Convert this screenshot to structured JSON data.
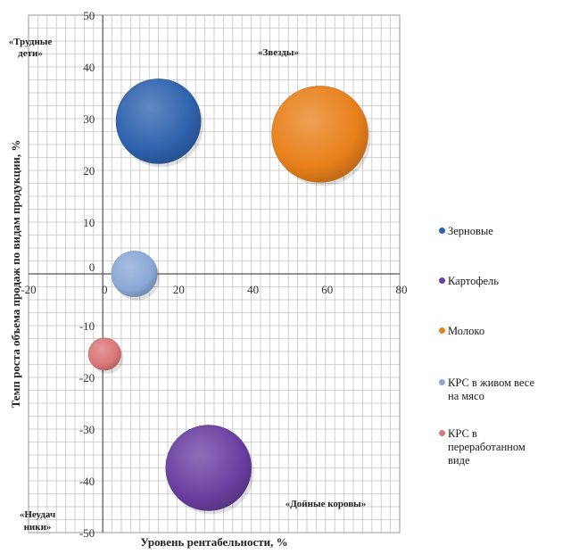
{
  "chart_data": {
    "type": "bubble",
    "xlabel": "Уровень рентабельности, %",
    "ylabel": "Темп роста объема продаж по видам продукции, %",
    "xlim": [
      -20,
      80
    ],
    "ylim": [
      -50,
      50
    ],
    "x_ticks": [
      "-20",
      "0",
      "20",
      "40",
      "60",
      "80"
    ],
    "y_ticks": [
      "-50",
      "-40",
      "-30",
      "-20",
      "-10",
      "0",
      "10",
      "20",
      "30",
      "40",
      "50"
    ],
    "grid": true,
    "legend_position": "right",
    "series": [
      {
        "name": "Зерновые",
        "x": 15,
        "y": 29.5,
        "size": 5.5,
        "color": "#2e62ad"
      },
      {
        "name": "Картофель",
        "x": 28.5,
        "y": -37.5,
        "size": 5.6,
        "color": "#6a3fa0"
      },
      {
        "name": "Молоко",
        "x": 58.5,
        "y": 27,
        "size": 7.1,
        "color": "#e8801b"
      },
      {
        "name": "КРС в живом весе на мясо",
        "x": 8.5,
        "y": 0,
        "size": 1.6,
        "color": "#8aa8d6"
      },
      {
        "name": "КРС в переработанном виде",
        "x": 0.5,
        "y": -15.5,
        "size": 0.8,
        "color": "#d97677"
      }
    ],
    "annotations": [
      "«Трудные дети»",
      "«Звезды»",
      "«Дойные коровы»",
      "«Неудачники»"
    ]
  },
  "quadrants": {
    "difficult_children_line1": "«Трудные",
    "difficult_children_line2": "дети»",
    "stars": "«Звезды»",
    "cash_cows": "«Дойные коровы»",
    "losers_line1": "«Неудач",
    "losers_line2": "ники»"
  },
  "legend_lines": [
    [
      "Зерновые"
    ],
    [
      "Картофель"
    ],
    [
      "Молоко"
    ],
    [
      "КРС в живом весе",
      "на мясо"
    ],
    [
      "КРС в",
      "переработанном",
      "виде"
    ]
  ]
}
